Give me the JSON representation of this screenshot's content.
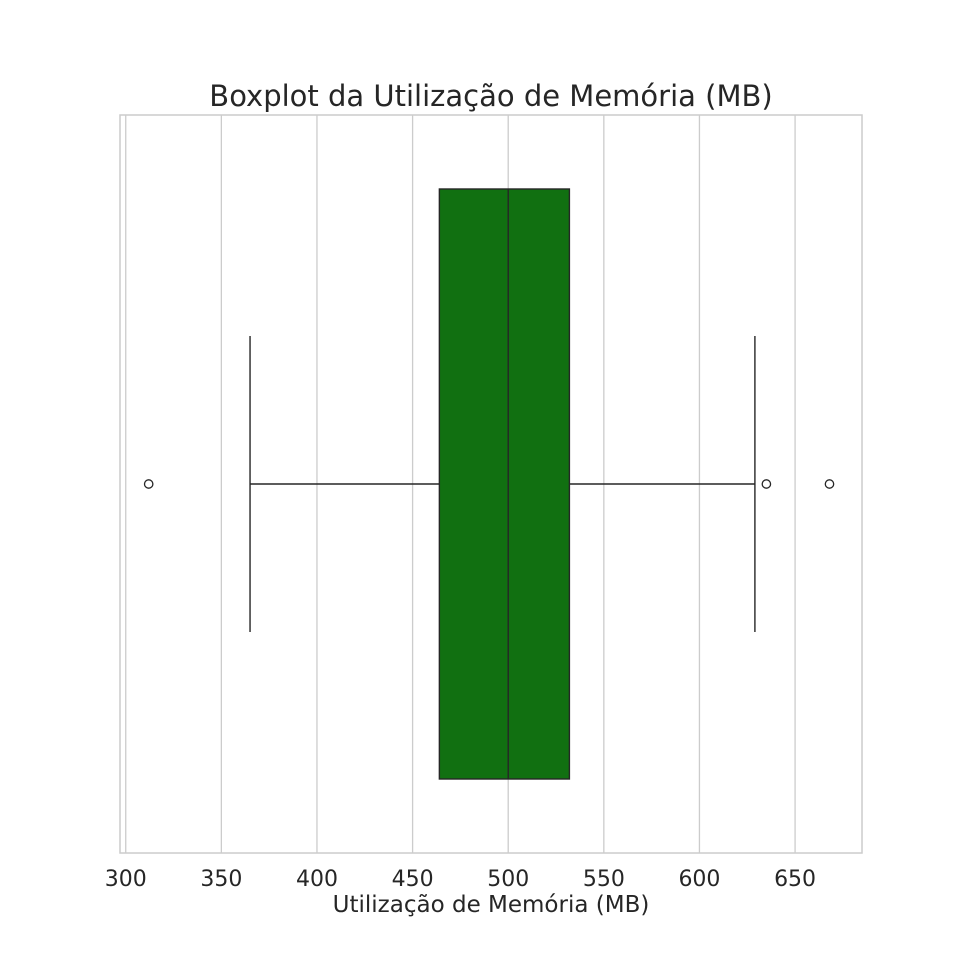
{
  "chart_data": {
    "type": "boxplot",
    "orientation": "horizontal",
    "title": "Boxplot da Utilização de Memória (MB)",
    "xlabel": "Utilização de Memória (MB)",
    "ylabel": "",
    "xlim": [
      297,
      685
    ],
    "xticks": [
      300,
      350,
      400,
      450,
      500,
      550,
      600,
      650
    ],
    "grid": true,
    "box": {
      "whisker_low": 365,
      "q1": 464,
      "median": 500,
      "q3": 532,
      "whisker_high": 629,
      "outliers": [
        312,
        635,
        668
      ]
    },
    "colors": {
      "box_fill": "#117011",
      "lines": "#262626",
      "grid": "#cccccc",
      "frame": "#cccccc"
    }
  }
}
